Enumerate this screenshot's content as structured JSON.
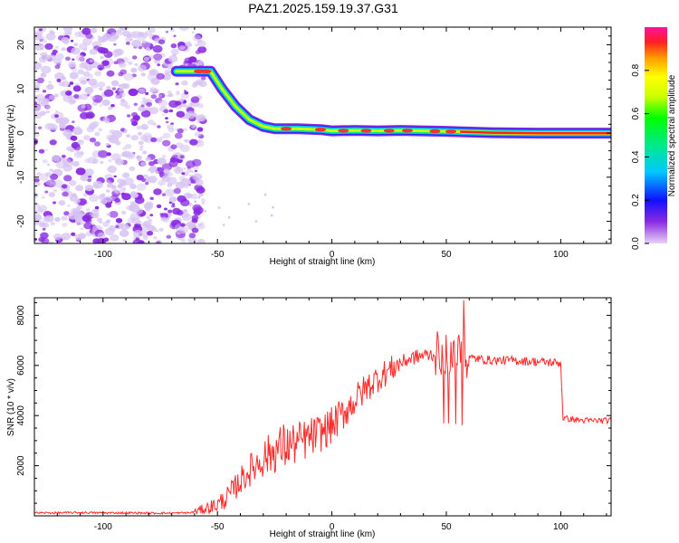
{
  "title": "PAZ1.2025.159.19.37.G31",
  "chart_data": [
    {
      "type": "heatmap",
      "xlabel": "Height of straight line (km)",
      "ylabel": "Frequency (Hz)",
      "xlim": [
        -130,
        122
      ],
      "ylim": [
        -25,
        24
      ],
      "xticks": [
        -100,
        -50,
        0,
        50,
        100
      ],
      "yticks": [
        -20,
        -10,
        0,
        10,
        20
      ],
      "colorbar": {
        "label": "Normalized spectral amplitude",
        "range": [
          0,
          1
        ],
        "ticks": [
          0.0,
          0.2,
          0.4,
          0.6,
          0.8
        ],
        "tick_labels": [
          "0.0",
          "0.2",
          "0.4",
          "0.6",
          "0.8"
        ]
      },
      "dominant_frequency_trace": {
        "x": [
          -68,
          -60,
          -53,
          -48,
          -42,
          -36,
          -30,
          -25,
          -15,
          -5,
          0,
          10,
          20,
          30,
          40,
          50,
          56,
          70,
          90,
          122
        ],
        "y": [
          14,
          14,
          14,
          10,
          6,
          3,
          1.5,
          1,
          1,
          0.8,
          0.5,
          0.6,
          0.5,
          0.6,
          0.5,
          0.4,
          0.3,
          0.1,
          0,
          0
        ]
      },
      "noise_region_x": [
        -130,
        -62
      ]
    },
    {
      "type": "line",
      "xlabel": "Height of straight line (km)",
      "ylabel": "SNR (10 * v/v)",
      "xlim": [
        -130,
        122
      ],
      "ylim": [
        0,
        8700
      ],
      "xticks": [
        -100,
        -50,
        0,
        50,
        100
      ],
      "yticks": [
        2000,
        4000,
        6000,
        8000
      ],
      "series": [
        {
          "x": [
            -130,
            -120,
            -110,
            -100,
            -90,
            -80,
            -70,
            -62,
            -55,
            -50,
            -45,
            -40,
            -35,
            -30,
            -25,
            -20,
            -15,
            -10,
            -5,
            0,
            5,
            10,
            15,
            20,
            25,
            30,
            35,
            40,
            45,
            50,
            55,
            58,
            60,
            65,
            70,
            80,
            90,
            100,
            101,
            105,
            110,
            115,
            122
          ],
          "y": [
            120,
            120,
            130,
            120,
            120,
            110,
            110,
            120,
            300,
            450,
            800,
            1400,
            1900,
            2300,
            2600,
            2800,
            2900,
            3100,
            3300,
            3600,
            4100,
            4600,
            5100,
            5500,
            5800,
            6100,
            6300,
            6400,
            6450,
            6500,
            6450,
            6400,
            6300,
            6250,
            6200,
            6200,
            6150,
            6100,
            3900,
            3850,
            3800,
            3800,
            3800
          ]
        }
      ]
    }
  ],
  "colors": {
    "line": "#ff2b2b",
    "noise_dots": "#8a2be2",
    "noise_light": "#d7c4f2"
  }
}
